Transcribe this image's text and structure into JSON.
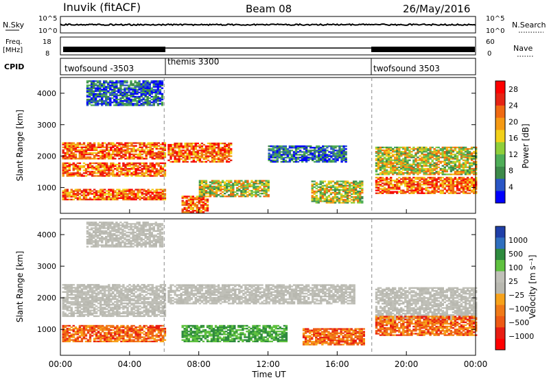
{
  "header": {
    "station": "Inuvik (fitACF)",
    "beam": "Beam 08",
    "date": "26/May/2016"
  },
  "aux_panels": {
    "nsky": {
      "label": "N.Sky",
      "ticks": [
        "10^5",
        "10^0"
      ]
    },
    "nsearch": {
      "label": "N.Search",
      "ticks": [
        "10^5",
        "10^0"
      ]
    },
    "freq": {
      "label_line1": "Freq.",
      "label_line2": "[MHz]",
      "ticks": [
        "18",
        "8"
      ]
    },
    "nave": {
      "label": "Nave",
      "ticks": [
        "60",
        "0"
      ]
    },
    "cpid": {
      "label": "CPID",
      "segments": [
        "twofsound -3503",
        "themis 3300",
        "twofsound 3503"
      ]
    }
  },
  "colors": {
    "power_scale": [
      "#0000ff",
      "#2a56c6",
      "#3d8a4a",
      "#4fae58",
      "#8fcf3a",
      "#f2d11a",
      "#f59a14",
      "#f06a12",
      "#e62414",
      "#ff0000"
    ],
    "velocity_scale": [
      "#1f3fa8",
      "#2f6fbf",
      "#2e8b3e",
      "#5fc13f",
      "#c0c0b8",
      "#b8b8b0",
      "#f7a21b",
      "#f07a18",
      "#ee5a14",
      "#e81d12",
      "#ff0000"
    ]
  },
  "chart_data": [
    {
      "type": "heatmap",
      "title": "Power",
      "ylabel": "Slant Range [km]",
      "yticks": [
        "1000",
        "2000",
        "3000",
        "4000"
      ],
      "ylim": [
        180,
        4500
      ],
      "colorbar": {
        "label": "Power [dB]",
        "ticks": [
          "4",
          "8",
          "12",
          "16",
          "20",
          "24",
          "28"
        ],
        "range": [
          0,
          30
        ]
      },
      "echo_bands": [
        {
          "t0": 0.1,
          "t1": 6.0,
          "r0": 1900,
          "r1": 2400,
          "level": "high"
        },
        {
          "t0": 0.1,
          "t1": 6.0,
          "r0": 1350,
          "r1": 1800,
          "level": "high"
        },
        {
          "t0": 0.1,
          "t1": 6.0,
          "r0": 600,
          "r1": 950,
          "level": "high"
        },
        {
          "t0": 1.5,
          "t1": 5.9,
          "r0": 3600,
          "r1": 4400,
          "level": "low"
        },
        {
          "t0": 6.2,
          "t1": 9.8,
          "r0": 1800,
          "r1": 2400,
          "level": "high"
        },
        {
          "t0": 7.0,
          "t1": 8.5,
          "r0": 200,
          "r1": 700,
          "level": "high"
        },
        {
          "t0": 8.0,
          "t1": 12.0,
          "r0": 700,
          "r1": 1200,
          "level": "mid"
        },
        {
          "t0": 12.0,
          "t1": 16.5,
          "r0": 1800,
          "r1": 2300,
          "level": "low"
        },
        {
          "t0": 14.5,
          "t1": 17.5,
          "r0": 500,
          "r1": 1200,
          "level": "mid"
        },
        {
          "t0": 18.2,
          "t1": 24.0,
          "r0": 1400,
          "r1": 2300,
          "level": "mid"
        },
        {
          "t0": 18.2,
          "t1": 24.0,
          "r0": 800,
          "r1": 1300,
          "level": "high"
        }
      ]
    },
    {
      "type": "heatmap",
      "title": "Velocity",
      "ylabel": "Slant Range [km]",
      "yticks": [
        "1000",
        "2000",
        "3000",
        "4000"
      ],
      "ylim": [
        180,
        4500
      ],
      "colorbar": {
        "label": "Velocity [m s⁻¹]",
        "ticks": [
          "1000",
          "500",
          "100",
          "25",
          "−25",
          "−100",
          "−500",
          "−1000"
        ]
      },
      "echo_bands": [
        {
          "t0": 0.1,
          "t1": 6.0,
          "r0": 1400,
          "r1": 2400,
          "level": "gs"
        },
        {
          "t0": 0.1,
          "t1": 6.0,
          "r0": 600,
          "r1": 1100,
          "level": "neg"
        },
        {
          "t0": 1.5,
          "t1": 5.9,
          "r0": 3600,
          "r1": 4400,
          "level": "gs"
        },
        {
          "t0": 6.2,
          "t1": 12.0,
          "r0": 1800,
          "r1": 2400,
          "level": "gs"
        },
        {
          "t0": 7.0,
          "t1": 13.0,
          "r0": 600,
          "r1": 1100,
          "level": "pos"
        },
        {
          "t0": 12.0,
          "t1": 17.0,
          "r0": 1800,
          "r1": 2400,
          "level": "gs"
        },
        {
          "t0": 14.0,
          "t1": 17.5,
          "r0": 500,
          "r1": 1000,
          "level": "neg"
        },
        {
          "t0": 18.2,
          "t1": 24.0,
          "r0": 1300,
          "r1": 2300,
          "level": "gs"
        },
        {
          "t0": 18.2,
          "t1": 24.0,
          "r0": 800,
          "r1": 1400,
          "level": "neg"
        }
      ]
    }
  ],
  "xaxis": {
    "label": "Time UT",
    "ticks": [
      "00:00",
      "04:00",
      "08:00",
      "12:00",
      "16:00",
      "20:00",
      "00:00"
    ],
    "range": [
      0,
      24
    ]
  },
  "mode_changes_ut": [
    6.0,
    18.0
  ]
}
